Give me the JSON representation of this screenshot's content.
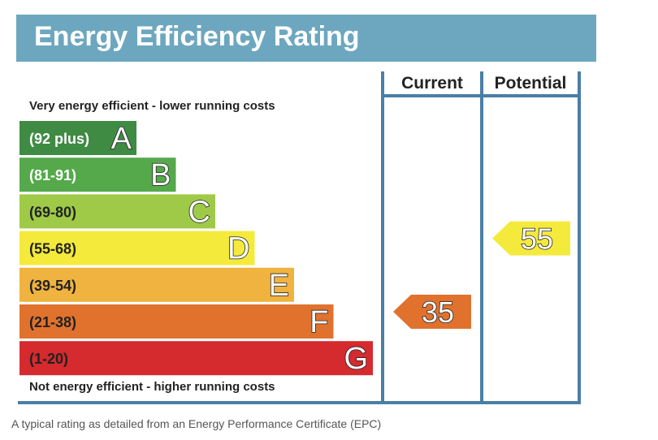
{
  "header": {
    "title": "Energy Efficiency Rating"
  },
  "chart_data": {
    "type": "bar",
    "title": "Energy Efficiency Rating",
    "columns": [
      "Current",
      "Potential"
    ],
    "top_note": "Very energy efficient - lower running costs",
    "bottom_note": "Not energy efficient - higher running costs",
    "bands": [
      {
        "range": "(92 plus)",
        "letter": "A",
        "color": "#3f8b43"
      },
      {
        "range": "(81-91)",
        "letter": "B",
        "color": "#55a94b"
      },
      {
        "range": "(69-80)",
        "letter": "C",
        "color": "#9fca47"
      },
      {
        "range": "(55-68)",
        "letter": "D",
        "color": "#f4ea3b"
      },
      {
        "range": "(39-54)",
        "letter": "E",
        "color": "#f0b33f"
      },
      {
        "range": "(21-38)",
        "letter": "F",
        "color": "#e0722e"
      },
      {
        "range": "(1-20)",
        "letter": "G",
        "color": "#d52a2e"
      }
    ],
    "ratings": {
      "current": {
        "value": "35",
        "band": "F",
        "color": "#e0722e"
      },
      "potential": {
        "value": "55",
        "band": "D",
        "color": "#f4ea3b"
      }
    }
  },
  "caption": "A typical rating as detailed from an Energy Performance Certificate (EPC)"
}
